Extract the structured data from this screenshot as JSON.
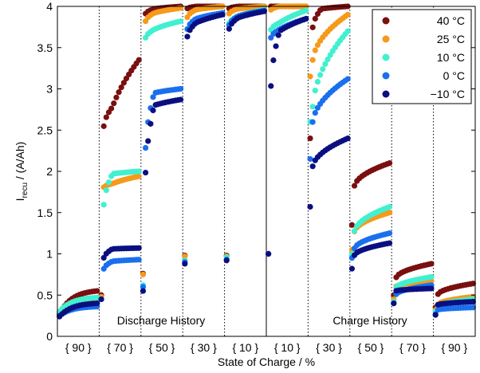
{
  "chart_data": {
    "type": "scatter",
    "xlabel": "State of Charge / %",
    "ylabel_main": "I",
    "ylabel_sub": "recu",
    "ylabel_rest": " / (A/Ah)",
    "ylim": [
      0,
      4
    ],
    "yticks": [
      "0",
      "0.5",
      "1",
      "1.5",
      "2",
      "2.5",
      "3",
      "3.5",
      "4"
    ],
    "xlim": [
      0,
      12
    ],
    "categories": [
      "{ 90 }",
      "{ 70 }",
      "{ 50 }",
      "{ 30 }",
      "{ 10 }",
      "{ 10 }",
      "{ 30 }",
      "{ 50 }",
      "{ 70 }",
      "{ 90 }"
    ],
    "category_positions": [
      0.5,
      1.5,
      2.5,
      3.5,
      4.5,
      5.5,
      6.5,
      7.5,
      8.5,
      9.5
    ],
    "separators_dotted": [
      1,
      2,
      3,
      4,
      6,
      7,
      8,
      9
    ],
    "separators_solid": [
      5
    ],
    "grid": "dotted-vertical",
    "legend_position": "top-right",
    "annotations": [
      {
        "text": "Discharge History",
        "x": 2.5,
        "y": 0.18
      },
      {
        "text": "Charge History",
        "x": 7.5,
        "y": 0.18
      }
    ],
    "series": [
      {
        "name": "40 °C",
        "color": "#7a0f0f",
        "segments": [
          [
            0.27,
            0.55
          ],
          [
            0.5,
            2.5,
            2.78,
            3.35
          ],
          [
            0.76,
            3.9,
            3.97,
            4.0
          ],
          [
            0.98,
            3.97,
            4.0,
            4.0
          ],
          [
            0.98,
            3.97,
            4.0,
            4.0
          ],
          [
            1.0,
            4.0,
            4.0,
            4.0
          ],
          [
            2.4,
            3.7,
            3.97,
            4.0
          ],
          [
            1.35,
            1.8,
            2.1
          ],
          [
            0.5,
            0.7,
            0.88
          ],
          [
            0.35,
            0.5,
            0.64
          ]
        ]
      },
      {
        "name": "25 °C",
        "color": "#f59a1a",
        "segments": [
          [
            0.3,
            0.46
          ],
          [
            0.48,
            1.8,
            1.85,
            1.94
          ],
          [
            0.75,
            3.8,
            3.92,
            3.98
          ],
          [
            0.97,
            3.85,
            3.96,
            4.0
          ],
          [
            0.97,
            3.9,
            3.97,
            4.0
          ],
          [
            1.0,
            3.95,
            4.0,
            4.0
          ],
          [
            3.15,
            3.3,
            3.9
          ],
          [
            1.05,
            1.25,
            1.5
          ],
          [
            0.45,
            0.6,
            0.67
          ],
          [
            0.32,
            0.38,
            0.48
          ]
        ]
      },
      {
        "name": "10 °C",
        "color": "#40f0d0",
        "segments": [
          [
            0.3,
            0.47
          ],
          [
            0.45,
            1.52,
            1.97,
            2.0
          ],
          [
            0.62,
            3.6,
            3.72,
            3.82
          ],
          [
            0.92,
            3.7,
            3.82,
            3.92
          ],
          [
            0.96,
            3.78,
            3.88,
            3.96
          ],
          [
            1.0,
            3.7,
            3.8,
            3.95
          ],
          [
            2.6,
            2.7,
            3.7
          ],
          [
            1.0,
            1.25,
            1.57
          ],
          [
            0.42,
            0.58,
            0.72
          ],
          [
            0.3,
            0.36,
            0.45
          ]
        ]
      },
      {
        "name": "0 °C",
        "color": "#1a6fef",
        "segments": [
          [
            0.25,
            0.36
          ],
          [
            0.45,
            0.8,
            0.91,
            0.93
          ],
          [
            0.6,
            2.15,
            2.95,
            3.0
          ],
          [
            0.9,
            3.7,
            3.85,
            3.92
          ],
          [
            0.93,
            3.75,
            3.88,
            3.95
          ],
          [
            1.0,
            3.6,
            3.72,
            3.85
          ],
          [
            2.15,
            2.55,
            3.12
          ],
          [
            0.95,
            1.05,
            1.25
          ],
          [
            0.4,
            0.5,
            0.62
          ],
          [
            0.27,
            0.32,
            0.35
          ]
        ]
      },
      {
        "name": "−10 °C",
        "color": "#0a0f80",
        "segments": [
          [
            0.24,
            0.4
          ],
          [
            0.45,
            0.93,
            1.06,
            1.07
          ],
          [
            0.55,
            1.82,
            2.8,
            2.87
          ],
          [
            0.88,
            3.6,
            3.8,
            3.9
          ],
          [
            0.92,
            3.7,
            3.86,
            3.94
          ],
          [
            1.0,
            2.9,
            3.7,
            3.85
          ],
          [
            1.57,
            2.03,
            2.4
          ],
          [
            0.82,
            0.97,
            1.13
          ],
          [
            0.4,
            0.55,
            0.58
          ],
          [
            0.26,
            0.38,
            0.42
          ]
        ]
      }
    ]
  }
}
